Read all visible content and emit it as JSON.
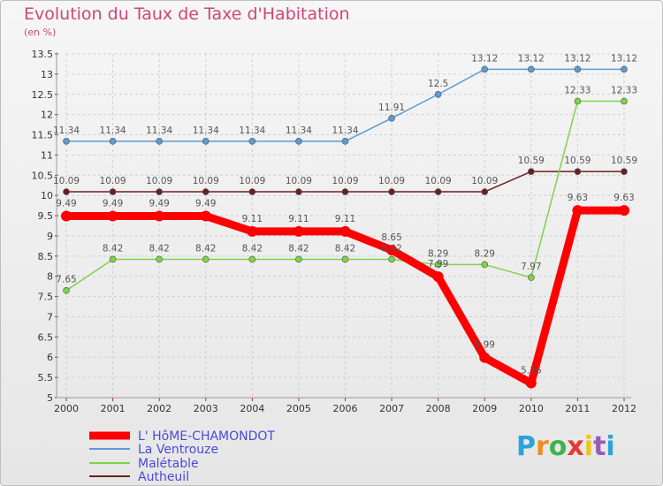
{
  "title": "Evolution du Taux de Taxe d'Habitation",
  "unit_label": "(en %)",
  "logo": {
    "letters": [
      "P",
      "r",
      "o",
      "x",
      "i",
      "t",
      "i"
    ],
    "colors": [
      "#2aa3d8",
      "#f08c1e",
      "#3fb34f",
      "#e63a2e",
      "#f0c419",
      "#9a5ab6",
      "#2aa3d8"
    ]
  },
  "chart_data": {
    "type": "line",
    "x": [
      "2000",
      "2001",
      "2002",
      "2003",
      "2004",
      "2005",
      "2006",
      "2007",
      "2008",
      "2009",
      "2010",
      "2011",
      "2012"
    ],
    "ylim": [
      5,
      13.5
    ],
    "yticks": [
      "5",
      "5.5",
      "6",
      "6.5",
      "7",
      "7.5",
      "8",
      "8.5",
      "9",
      "9.5",
      "10",
      "10.5",
      "11",
      "11.5",
      "12",
      "12.5",
      "13",
      "13.5"
    ],
    "grid": true,
    "legend_position": "bottom-left",
    "series": [
      {
        "name": "L' HôME-CHAMONDOT",
        "color": "#ff0000",
        "values": [
          9.49,
          9.49,
          9.49,
          9.49,
          9.11,
          9.11,
          9.11,
          8.65,
          7.99,
          5.99,
          5.36,
          9.63,
          9.63
        ],
        "labels": [
          "9.49",
          "9.49",
          "9.49",
          "9.49",
          "9.11",
          "9.11",
          "9.11",
          "8.65",
          "7.99",
          "5.99",
          "5.36",
          "9.63",
          "9.63"
        ]
      },
      {
        "name": "La Ventrouze",
        "color": "#5b9bd5",
        "values": [
          11.34,
          11.34,
          11.34,
          11.34,
          11.34,
          11.34,
          11.34,
          11.91,
          12.5,
          13.12,
          13.12,
          13.12,
          13.12
        ],
        "labels": [
          "11.34",
          "11.34",
          "11.34",
          "11.34",
          "11.34",
          "11.34",
          "11.34",
          "11.91",
          "12.5",
          "13.12",
          "13.12",
          "13.12",
          "13.12"
        ]
      },
      {
        "name": "Malétable",
        "color": "#7ed348",
        "values": [
          7.65,
          8.42,
          8.42,
          8.42,
          8.42,
          8.42,
          8.42,
          8.42,
          8.29,
          8.29,
          7.97,
          12.33,
          12.33
        ],
        "labels": [
          "7.65",
          "8.42",
          "8.42",
          "8.42",
          "8.42",
          "8.42",
          "8.42",
          "8.42",
          "8.29",
          "8.29",
          "7.97",
          "12.33",
          "12.33"
        ]
      },
      {
        "name": "Autheuil",
        "color": "#6b1f1f",
        "values": [
          10.09,
          10.09,
          10.09,
          10.09,
          10.09,
          10.09,
          10.09,
          10.09,
          10.09,
          10.09,
          10.59,
          10.59,
          10.59
        ],
        "labels": [
          "10.09",
          "10.09",
          "10.09",
          "10.09",
          "10.09",
          "10.09",
          "10.09",
          "10.09",
          "10.09",
          "10.09",
          "10.59",
          "10.59",
          "10.59"
        ]
      }
    ]
  }
}
